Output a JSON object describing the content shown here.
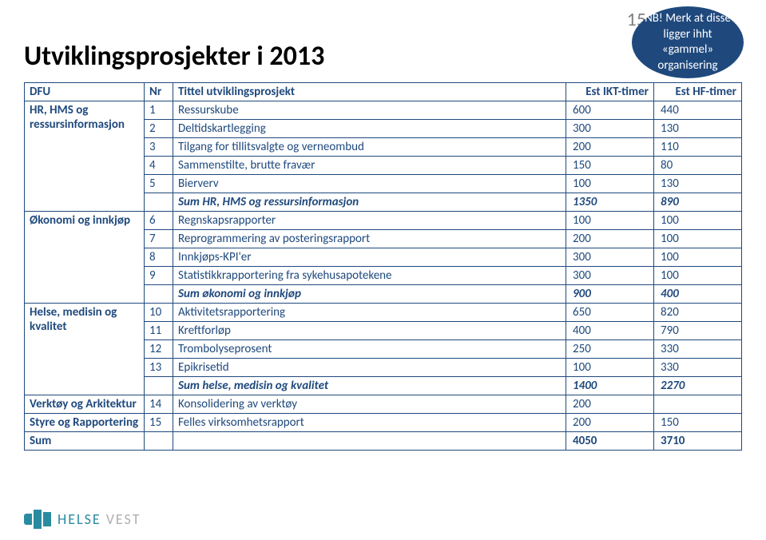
{
  "page_number": "15",
  "note": "NB! Merk at disse ligger ihht «gammel» organisering",
  "title": "Utviklingsprosjekter i 2013",
  "headers": {
    "dfu": "DFU",
    "nr": "Nr",
    "tittel": "Tittel utviklingsprosjekt",
    "ikt": "Est IKT-timer",
    "hf": "Est HF-timer"
  },
  "groups": [
    {
      "dfu": "HR, HMS og ressursinformasjon",
      "rows": [
        {
          "nr": "1",
          "title": "Ressurskube",
          "ikt": "600",
          "hf": "440"
        },
        {
          "nr": "2",
          "title": "Deltidskartlegging",
          "ikt": "300",
          "hf": "130"
        },
        {
          "nr": "3",
          "title": "Tilgang for tillitsvalgte og verneombud",
          "ikt": "200",
          "hf": "110"
        },
        {
          "nr": "4",
          "title": "Sammenstilte, brutte fravær",
          "ikt": "150",
          "hf": "80"
        },
        {
          "nr": "5",
          "title": "Bierverv",
          "ikt": "100",
          "hf": "130"
        }
      ],
      "sum": {
        "label": "Sum HR, HMS og ressursinformasjon",
        "ikt": "1350",
        "hf": "890"
      }
    },
    {
      "dfu": "Økonomi og innkjøp",
      "rows": [
        {
          "nr": "6",
          "title": "Regnskapsrapporter",
          "ikt": "100",
          "hf": "100"
        },
        {
          "nr": "7",
          "title": "Reprogrammering av posteringsrapport",
          "ikt": "200",
          "hf": "100"
        },
        {
          "nr": "8",
          "title": "Innkjøps-KPI'er",
          "ikt": "300",
          "hf": "100"
        },
        {
          "nr": "9",
          "title": "Statistikkrapportering fra sykehusapotekene",
          "ikt": "300",
          "hf": "100"
        }
      ],
      "sum": {
        "label": "Sum økonomi og innkjøp",
        "ikt": "900",
        "hf": "400"
      }
    },
    {
      "dfu": "Helse, medisin og kvalitet",
      "rows": [
        {
          "nr": "10",
          "title": "Aktivitetsrapportering",
          "ikt": "650",
          "hf": "820"
        },
        {
          "nr": "11",
          "title": "Kreftforløp",
          "ikt": "400",
          "hf": "790"
        },
        {
          "nr": "12",
          "title": "Trombolyseprosent",
          "ikt": "250",
          "hf": "330"
        },
        {
          "nr": "13",
          "title": "Epikrisetid",
          "ikt": "100",
          "hf": "330"
        }
      ],
      "sum": {
        "label": "Sum helse, medisin og kvalitet",
        "ikt": "1400",
        "hf": "2270"
      }
    },
    {
      "dfu": "Verktøy og Arkitektur",
      "rows": [
        {
          "nr": "14",
          "title": "Konsolidering av verktøy",
          "ikt": "200",
          "hf": ""
        }
      ]
    },
    {
      "dfu": "Styre og Rapportering",
      "rows": [
        {
          "nr": "15",
          "title": "Felles virksomhetsrapport",
          "ikt": "200",
          "hf": "150"
        }
      ]
    }
  ],
  "total": {
    "label": "Sum",
    "ikt": "4050",
    "hf": "3710"
  },
  "logo": {
    "brand": "HELSE",
    "sub": "VEST"
  }
}
